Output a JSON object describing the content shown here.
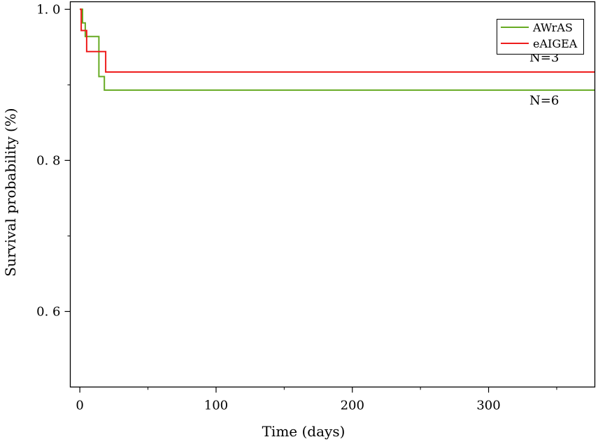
{
  "chart_data": {
    "type": "line",
    "step": true,
    "xlabel": "Time (days)",
    "ylabel": "Survival probability (%)",
    "xlim": [
      -7,
      378
    ],
    "ylim": [
      0.5,
      1.01
    ],
    "x_ticks": [
      0,
      100,
      200,
      300
    ],
    "x_tick_labels": [
      "0",
      "100",
      "200",
      "300"
    ],
    "x_minor_ticks": [
      50,
      150,
      250,
      350
    ],
    "y_ticks": [
      0.6,
      0.8,
      1.0
    ],
    "y_tick_labels": [
      "0. 6",
      "0. 8",
      "1. 0"
    ],
    "y_minor_ticks": [
      0.7,
      0.9
    ],
    "grid": false,
    "legend": "top-right",
    "series": [
      {
        "name": "AWrAS",
        "color": "#66aa22",
        "x": [
          0,
          2,
          4,
          14,
          18,
          378
        ],
        "y": [
          1.0,
          0.982,
          0.964,
          0.911,
          0.893,
          0.893
        ]
      },
      {
        "name": "eAIGEA",
        "color": "#ee1c1c",
        "x": [
          0,
          1,
          5,
          19,
          378
        ],
        "y": [
          1.0,
          0.972,
          0.944,
          0.917,
          0.917
        ]
      }
    ],
    "annotations": [
      {
        "text": "N=3",
        "x": 330,
        "y": 0.931
      },
      {
        "text": "N=6",
        "x": 330,
        "y": 0.874
      }
    ]
  }
}
